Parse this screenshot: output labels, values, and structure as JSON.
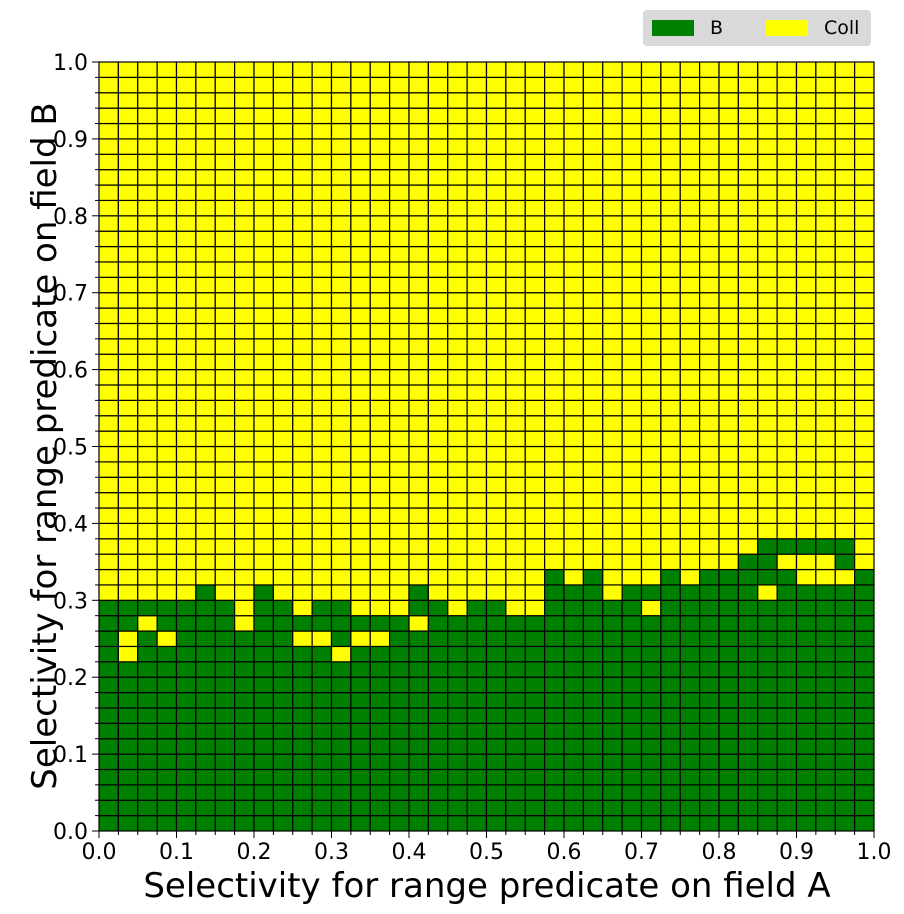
{
  "chart_data": {
    "type": "heatmap",
    "xlabel": "Selectivity for range predicate on field A",
    "ylabel": "Selectivity for range predicate on field B",
    "xlim": [
      0.0,
      1.0
    ],
    "ylim": [
      0.0,
      1.0
    ],
    "xticks": [
      "0.0",
      "0.1",
      "0.2",
      "0.3",
      "0.4",
      "0.5",
      "0.6",
      "0.7",
      "0.8",
      "0.9",
      "1.0"
    ],
    "yticks": [
      "0.0",
      "0.1",
      "0.2",
      "0.3",
      "0.4",
      "0.5",
      "0.6",
      "0.7",
      "0.8",
      "0.9",
      "1.0"
    ],
    "grid_cells_x": 40,
    "grid_cells_y": 50,
    "cell_width": 0.025,
    "cell_height": 0.02,
    "legend_position": "top-right",
    "legend": [
      {
        "label": "B",
        "color": "#008000"
      },
      {
        "label": "Coll",
        "color": "#ffff00"
      }
    ],
    "column_max_b_selectivity": [
      0.3,
      0.24,
      0.26,
      0.3,
      0.3,
      0.32,
      0.3,
      0.28,
      0.32,
      0.26,
      0.26,
      0.3,
      0.3,
      0.28,
      0.28,
      0.28,
      0.32,
      0.3,
      0.3,
      0.3,
      0.3,
      0.3,
      0.3,
      0.34,
      0.32,
      0.34,
      0.32,
      0.3,
      0.32,
      0.32,
      0.32,
      0.32,
      0.34,
      0.36,
      0.34,
      0.32,
      0.34,
      0.32,
      0.32,
      0.34
    ],
    "b_in_coll_region": [
      [
        0,
        0.28
      ],
      [
        1,
        0.28
      ],
      [
        1,
        0.26
      ],
      [
        2,
        0.28
      ],
      [
        3,
        0.26
      ],
      [
        4,
        0.28
      ],
      [
        4,
        0.26
      ],
      [
        5,
        0.26
      ],
      [
        5,
        0.24
      ],
      [
        6,
        0.26
      ],
      [
        7,
        0.24
      ],
      [
        8,
        0.24
      ],
      [
        9,
        0.28
      ],
      [
        9,
        0.26
      ],
      [
        10,
        0.26
      ],
      [
        11,
        0.28
      ],
      [
        11,
        0.26
      ],
      [
        12,
        0.28
      ],
      [
        12,
        0.26
      ],
      [
        12,
        0.24
      ],
      [
        13,
        0.24
      ],
      [
        14,
        0.26
      ],
      [
        15,
        0.26
      ],
      [
        16,
        0.26
      ],
      [
        17,
        0.28
      ],
      [
        18,
        0.28
      ],
      [
        19,
        0.28
      ],
      [
        20,
        0.28
      ],
      [
        21,
        0.28
      ],
      [
        22,
        0.28
      ],
      [
        23,
        0.3
      ],
      [
        24,
        0.28
      ],
      [
        25,
        0.3
      ],
      [
        26,
        0.3
      ],
      [
        27,
        0.3
      ],
      [
        28,
        0.3
      ],
      [
        29,
        0.3
      ],
      [
        30,
        0.3
      ],
      [
        31,
        0.3
      ],
      [
        32,
        0.3
      ],
      [
        33,
        0.3
      ],
      [
        34,
        0.3
      ],
      [
        35,
        0.3
      ],
      [
        36,
        0.3
      ],
      [
        37,
        0.3
      ],
      [
        38,
        0.3
      ],
      [
        39,
        0.3
      ]
    ],
    "b_islands_above": [
      [
        20,
        0.26
      ],
      [
        25,
        0.3
      ],
      [
        30,
        0.3
      ],
      [
        34,
        0.34
      ],
      [
        34,
        0.36
      ],
      [
        35,
        0.36
      ],
      [
        36,
        0.36
      ],
      [
        37,
        0.36
      ],
      [
        38,
        0.36
      ],
      [
        38,
        0.34
      ],
      [
        39,
        0.32
      ],
      [
        33,
        0.34
      ],
      [
        29,
        0.32
      ],
      [
        31,
        0.32
      ],
      [
        32,
        0.32
      ],
      [
        35,
        0.32
      ]
    ],
    "coll_islands_below": [
      [
        1,
        0.22
      ],
      [
        3,
        0.24
      ],
      [
        7,
        0.26
      ],
      [
        10,
        0.24
      ],
      [
        11,
        0.24
      ],
      [
        12,
        0.22
      ],
      [
        13,
        0.24
      ],
      [
        14,
        0.24
      ],
      [
        16,
        0.26
      ],
      [
        18,
        0.28
      ],
      [
        21,
        0.28
      ],
      [
        22,
        0.28
      ],
      [
        26,
        0.3
      ],
      [
        28,
        0.28
      ],
      [
        34,
        0.3
      ],
      [
        36,
        0.32
      ]
    ]
  }
}
